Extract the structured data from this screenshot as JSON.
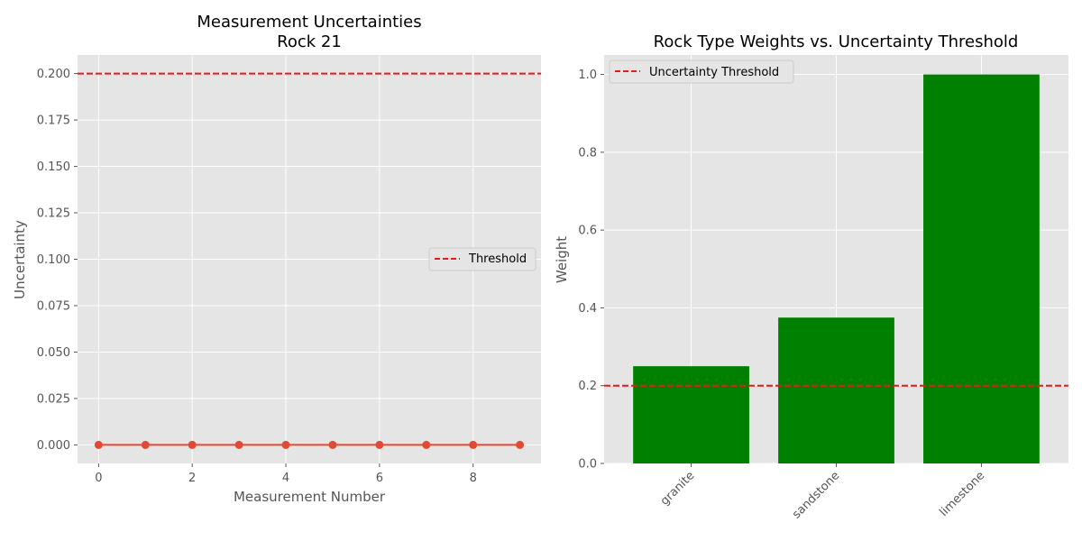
{
  "chart_data": [
    {
      "type": "line",
      "title": "Measurement Uncertainties",
      "subtitle": "Rock 21",
      "xlabel": "Measurement Number",
      "ylabel": "Uncertainty",
      "x": [
        0,
        1,
        2,
        3,
        4,
        5,
        6,
        7,
        8,
        9
      ],
      "series": [
        {
          "values": [
            0,
            0,
            0,
            0,
            0,
            0,
            0,
            0,
            0,
            0
          ],
          "color": "#e24a33"
        }
      ],
      "threshold": {
        "value": 0.2,
        "label": "Threshold",
        "color": "#e41a1c"
      },
      "xlim": [
        -0.45,
        9.45
      ],
      "ylim": [
        -0.01,
        0.21
      ],
      "xticks": [
        0,
        2,
        4,
        6,
        8
      ],
      "xtick_labels": [
        "0",
        "2",
        "4",
        "6",
        "8"
      ],
      "yticks": [
        0,
        0.025,
        0.05,
        0.075,
        0.1,
        0.125,
        0.15,
        0.175,
        0.2
      ],
      "ytick_labels": [
        "0.000",
        "0.025",
        "0.050",
        "0.075",
        "0.100",
        "0.125",
        "0.150",
        "0.175",
        "0.200"
      ],
      "grid": true,
      "legend": "center-right"
    },
    {
      "type": "bar",
      "title": "Rock Type Weights vs. Uncertainty Threshold",
      "xlabel": "",
      "ylabel": "Weight",
      "categories": [
        "granite",
        "sandstone",
        "limestone"
      ],
      "values": [
        0.25,
        0.375,
        1.0
      ],
      "bar_color": "#008000",
      "threshold": {
        "value": 0.2,
        "label": "Uncertainty Threshold",
        "color": "#e41a1c"
      },
      "ylim": [
        0,
        1.05
      ],
      "yticks": [
        0,
        0.2,
        0.4,
        0.6,
        0.8,
        1.0
      ],
      "ytick_labels": [
        "0.0",
        "0.2",
        "0.4",
        "0.6",
        "0.8",
        "1.0"
      ],
      "xtick_rotation": 45,
      "grid": true,
      "legend": "top-left"
    }
  ],
  "style": {
    "panel_background": "#e5e5e5",
    "grid_color": "#ffffff"
  }
}
